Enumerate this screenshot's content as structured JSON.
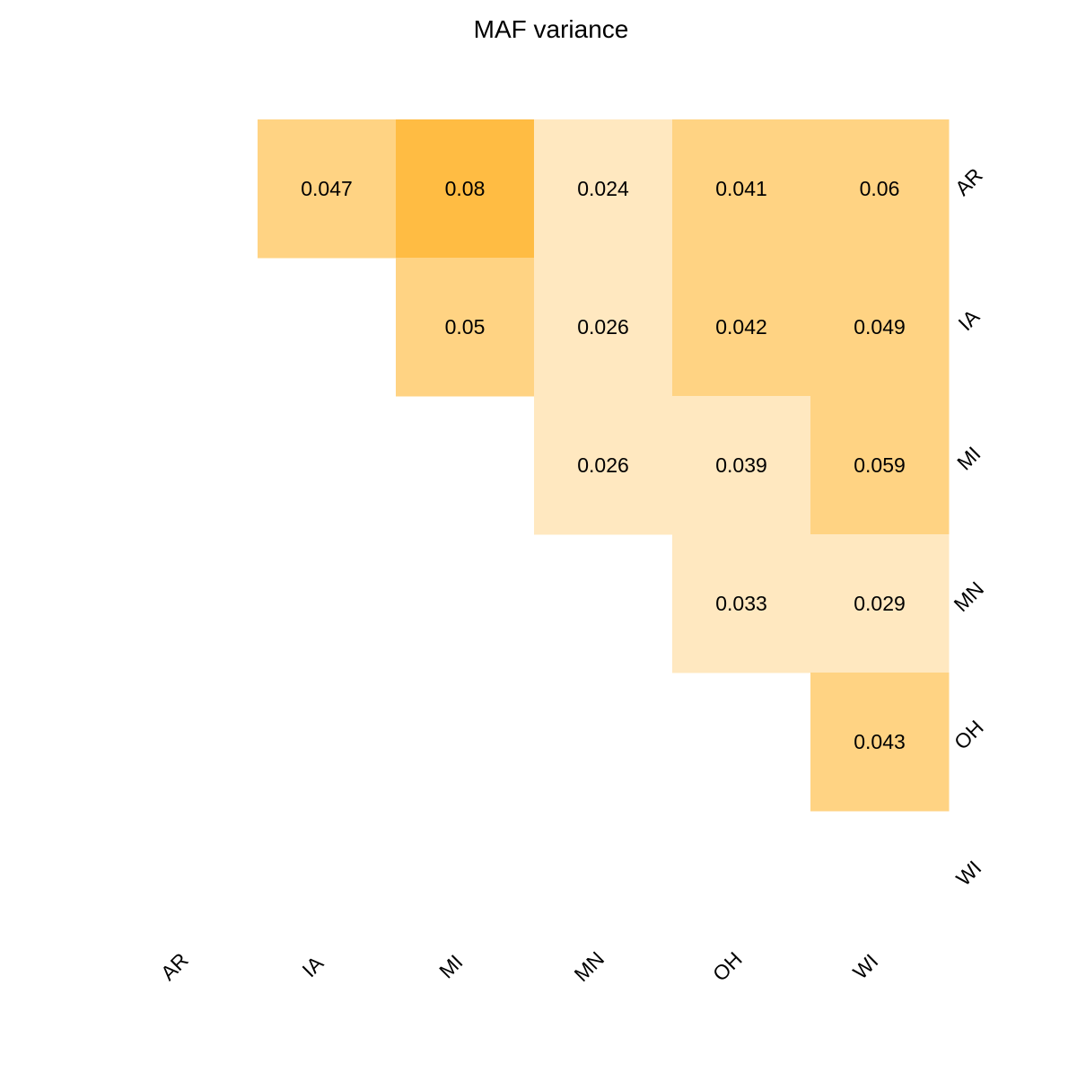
{
  "chart_data": {
    "type": "heatmap",
    "title": "MAF variance",
    "x_categories": [
      "AR",
      "IA",
      "MI",
      "MN",
      "OH",
      "WI"
    ],
    "y_categories": [
      "AR",
      "IA",
      "MI",
      "MN",
      "OH",
      "WI"
    ],
    "cells": [
      {
        "row": "AR",
        "col": "IA",
        "value": 0.047,
        "label": "0.047"
      },
      {
        "row": "AR",
        "col": "MI",
        "value": 0.08,
        "label": "0.08"
      },
      {
        "row": "AR",
        "col": "MN",
        "value": 0.024,
        "label": "0.024"
      },
      {
        "row": "AR",
        "col": "OH",
        "value": 0.041,
        "label": "0.041"
      },
      {
        "row": "AR",
        "col": "WI",
        "value": 0.06,
        "label": "0.06"
      },
      {
        "row": "IA",
        "col": "MI",
        "value": 0.05,
        "label": "0.05"
      },
      {
        "row": "IA",
        "col": "MN",
        "value": 0.026,
        "label": "0.026"
      },
      {
        "row": "IA",
        "col": "OH",
        "value": 0.042,
        "label": "0.042"
      },
      {
        "row": "IA",
        "col": "WI",
        "value": 0.049,
        "label": "0.049"
      },
      {
        "row": "MI",
        "col": "MN",
        "value": 0.026,
        "label": "0.026"
      },
      {
        "row": "MI",
        "col": "OH",
        "value": 0.039,
        "label": "0.039"
      },
      {
        "row": "MI",
        "col": "WI",
        "value": 0.059,
        "label": "0.059"
      },
      {
        "row": "MN",
        "col": "OH",
        "value": 0.033,
        "label": "0.033"
      },
      {
        "row": "MN",
        "col": "WI",
        "value": 0.029,
        "label": "0.029"
      },
      {
        "row": "OH",
        "col": "WI",
        "value": 0.043,
        "label": "0.043"
      }
    ],
    "color_bins": [
      {
        "max": 0.04,
        "color": "#FFE8C0"
      },
      {
        "max": 0.07,
        "color": "#FFD383"
      },
      {
        "max": 1.0,
        "color": "#FFBC43"
      }
    ],
    "grid": false,
    "legend": "none"
  }
}
